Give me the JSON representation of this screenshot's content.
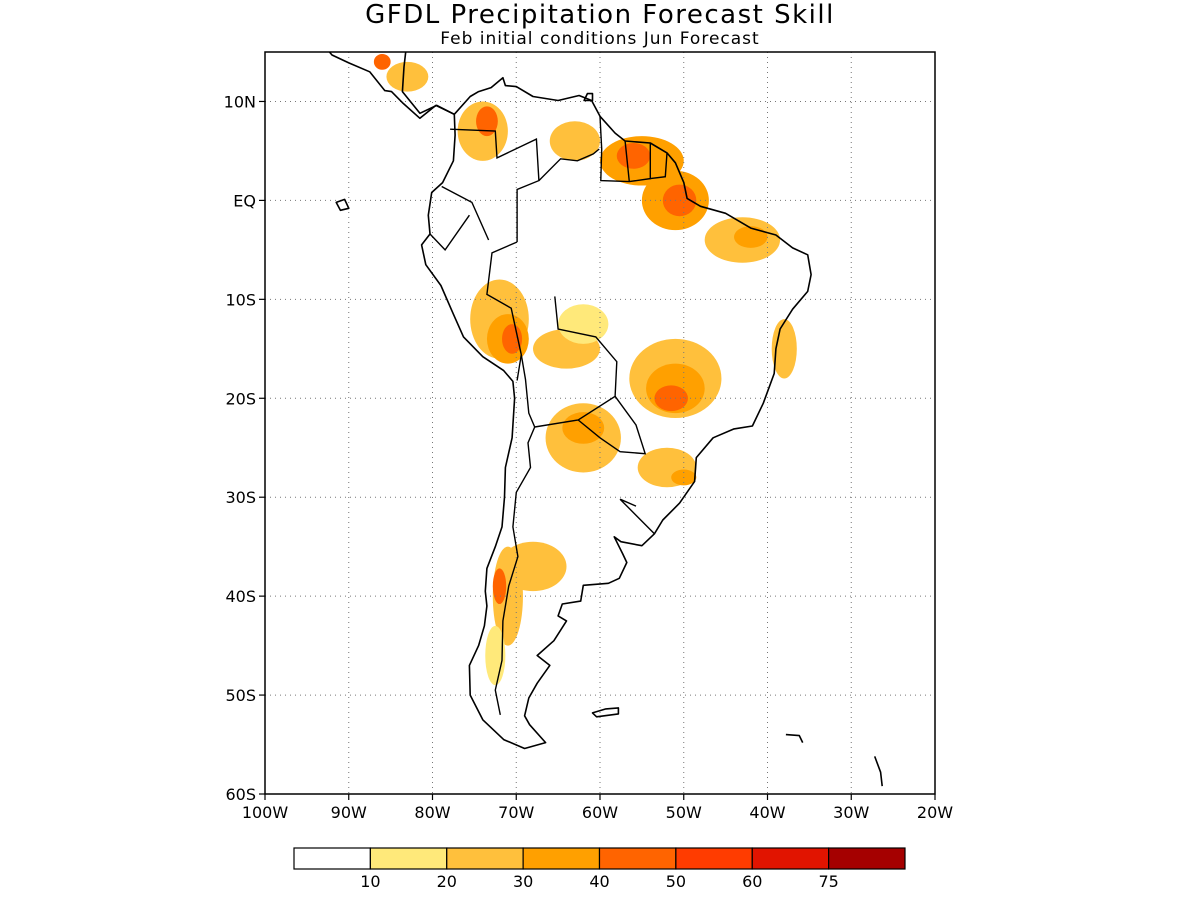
{
  "title": "GFDL Precipitation Forecast Skill",
  "subtitle": "Feb initial conditions  Jun Forecast",
  "map": {
    "lon_range": [
      -100,
      -20
    ],
    "lat_range": [
      -60,
      15
    ],
    "lat_ticks": [
      {
        "value": 10,
        "label": "10N"
      },
      {
        "value": 0,
        "label": "EQ"
      },
      {
        "value": -10,
        "label": "10S"
      },
      {
        "value": -20,
        "label": "20S"
      },
      {
        "value": -30,
        "label": "30S"
      },
      {
        "value": -40,
        "label": "40S"
      },
      {
        "value": -50,
        "label": "50S"
      },
      {
        "value": -60,
        "label": "60S"
      }
    ],
    "lon_ticks": [
      {
        "value": -100,
        "label": "100W"
      },
      {
        "value": -90,
        "label": "90W"
      },
      {
        "value": -80,
        "label": "80W"
      },
      {
        "value": -70,
        "label": "70W"
      },
      {
        "value": -60,
        "label": "60W"
      },
      {
        "value": -50,
        "label": "50W"
      },
      {
        "value": -40,
        "label": "40W"
      },
      {
        "value": -30,
        "label": "30W"
      },
      {
        "value": -20,
        "label": "20W"
      }
    ],
    "grid": "dotted"
  },
  "colorbar": {
    "colors": [
      "#ffffff",
      "#ffe97a",
      "#ffc03c",
      "#ffa000",
      "#ff6400",
      "#ff3c00",
      "#e11400",
      "#a50000"
    ],
    "labels": [
      "10",
      "20",
      "30",
      "40",
      "50",
      "60",
      "75"
    ]
  },
  "skill_regions": [
    {
      "lon": -74,
      "lat": 7,
      "rx": 3,
      "ry": 3,
      "level": 2
    },
    {
      "lon": -73.5,
      "lat": 8,
      "rx": 1.3,
      "ry": 1.5,
      "level": 4
    },
    {
      "lon": -63,
      "lat": 6,
      "rx": 3,
      "ry": 2,
      "level": 2
    },
    {
      "lon": -55,
      "lat": 4,
      "rx": 5,
      "ry": 2.5,
      "level": 3
    },
    {
      "lon": -56,
      "lat": 4.5,
      "rx": 2,
      "ry": 1.3,
      "level": 4
    },
    {
      "lon": -51,
      "lat": 0,
      "rx": 4,
      "ry": 3,
      "level": 3
    },
    {
      "lon": -50.5,
      "lat": 0,
      "rx": 2,
      "ry": 1.6,
      "level": 4
    },
    {
      "lon": -43,
      "lat": -4,
      "rx": 4.5,
      "ry": 2.3,
      "level": 2
    },
    {
      "lon": -42,
      "lat": -3.7,
      "rx": 2,
      "ry": 1.1,
      "level": 3
    },
    {
      "lon": -72,
      "lat": -12,
      "rx": 3.5,
      "ry": 4,
      "level": 2
    },
    {
      "lon": -71,
      "lat": -14,
      "rx": 2.5,
      "ry": 2.5,
      "level": 3
    },
    {
      "lon": -70.5,
      "lat": -14,
      "rx": 1.2,
      "ry": 1.5,
      "level": 4
    },
    {
      "lon": -64,
      "lat": -15,
      "rx": 4,
      "ry": 2,
      "level": 2
    },
    {
      "lon": -62,
      "lat": -12.5,
      "rx": 3,
      "ry": 2,
      "level": 1
    },
    {
      "lon": -51,
      "lat": -18,
      "rx": 5.5,
      "ry": 4,
      "level": 2
    },
    {
      "lon": -51,
      "lat": -19,
      "rx": 3.5,
      "ry": 2.5,
      "level": 3
    },
    {
      "lon": -51.5,
      "lat": -20,
      "rx": 2,
      "ry": 1.3,
      "level": 4
    },
    {
      "lon": -38,
      "lat": -15,
      "rx": 1.5,
      "ry": 3,
      "level": 2
    },
    {
      "lon": -62,
      "lat": -24,
      "rx": 4.5,
      "ry": 3.5,
      "level": 2
    },
    {
      "lon": -62,
      "lat": -23,
      "rx": 2.5,
      "ry": 1.6,
      "level": 3
    },
    {
      "lon": -52,
      "lat": -27,
      "rx": 3.5,
      "ry": 2,
      "level": 2
    },
    {
      "lon": -50,
      "lat": -28,
      "rx": 1.5,
      "ry": 0.8,
      "level": 3
    },
    {
      "lon": -68,
      "lat": -37,
      "rx": 4,
      "ry": 2.5,
      "level": 2
    },
    {
      "lon": -71,
      "lat": -40,
      "rx": 1.8,
      "ry": 5,
      "level": 2
    },
    {
      "lon": -72,
      "lat": -39,
      "rx": 0.8,
      "ry": 1.8,
      "level": 4
    },
    {
      "lon": -72.5,
      "lat": -46,
      "rx": 1.2,
      "ry": 3,
      "level": 1
    },
    {
      "lon": -83,
      "lat": 12.5,
      "rx": 2.5,
      "ry": 1.5,
      "level": 2
    },
    {
      "lon": -86,
      "lat": 14,
      "rx": 1,
      "ry": 0.8,
      "level": 4
    }
  ]
}
